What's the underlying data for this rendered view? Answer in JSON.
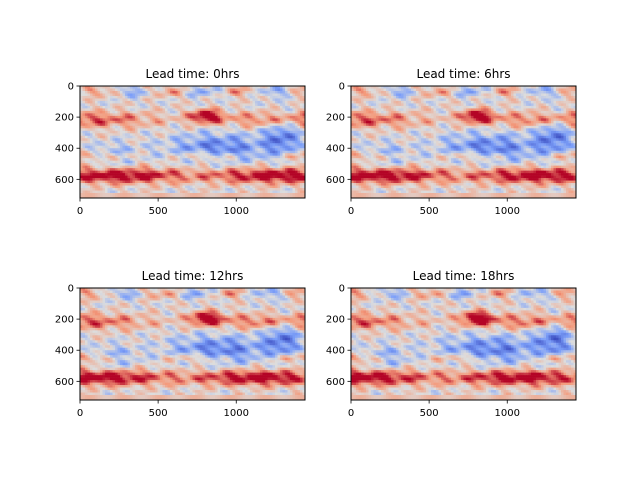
{
  "figure": {
    "colormap": "coolwarm",
    "colors": {
      "cold": "#3b4cc0",
      "neutral": "#dddddd",
      "warm": "#b40426",
      "axis": "#000000"
    }
  },
  "chart_data": [
    {
      "type": "heatmap",
      "title": "Lead time: 0hrs",
      "xlim": [
        0,
        1440
      ],
      "ylim": [
        720,
        0
      ],
      "xticks": [
        0,
        500,
        1000
      ],
      "xtick_labels": [
        "0",
        "500",
        "1000"
      ],
      "yticks": [
        0,
        200,
        400,
        600
      ],
      "ytick_labels": [
        "0",
        "200",
        "400",
        "600"
      ],
      "seed": 0
    },
    {
      "type": "heatmap",
      "title": "Lead time: 6hrs",
      "xlim": [
        0,
        1440
      ],
      "ylim": [
        720,
        0
      ],
      "xticks": [
        0,
        500,
        1000
      ],
      "xtick_labels": [
        "0",
        "500",
        "1000"
      ],
      "yticks": [
        0,
        200,
        400,
        600
      ],
      "ytick_labels": [
        "0",
        "200",
        "400",
        "600"
      ],
      "seed": 1
    },
    {
      "type": "heatmap",
      "title": "Lead time: 12hrs",
      "xlim": [
        0,
        1440
      ],
      "ylim": [
        720,
        0
      ],
      "xticks": [
        0,
        500,
        1000
      ],
      "xtick_labels": [
        "0",
        "500",
        "1000"
      ],
      "yticks": [
        0,
        200,
        400,
        600
      ],
      "ytick_labels": [
        "0",
        "200",
        "400",
        "600"
      ],
      "seed": 2
    },
    {
      "type": "heatmap",
      "title": "Lead time: 18hrs",
      "xlim": [
        0,
        1440
      ],
      "ylim": [
        720,
        0
      ],
      "xticks": [
        0,
        500,
        1000
      ],
      "xtick_labels": [
        "0",
        "500",
        "1000"
      ],
      "yticks": [
        0,
        200,
        400,
        600
      ],
      "ytick_labels": [
        "0",
        "200",
        "400",
        "600"
      ],
      "seed": 3
    }
  ]
}
